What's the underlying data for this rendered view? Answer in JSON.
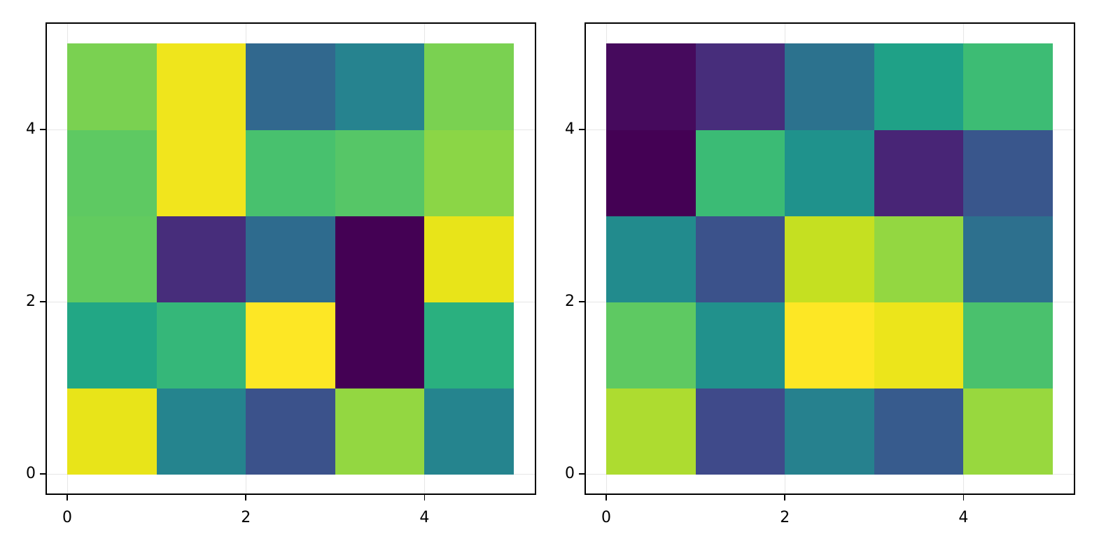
{
  "chart_data": [
    {
      "type": "heatmap",
      "title": "",
      "xlabel": "",
      "ylabel": "",
      "xlim": [
        -0.25,
        5.25
      ],
      "ylim": [
        -0.25,
        5.25
      ],
      "xticks": [
        "0",
        "2",
        "4"
      ],
      "yticks": [
        "0",
        "2",
        "4"
      ],
      "grid": true,
      "colormap": "viridis",
      "cell_edges_x": [
        0,
        1,
        2,
        3,
        4,
        5
      ],
      "cell_edges_y": [
        0,
        1,
        2,
        3,
        4,
        5
      ],
      "rows_bottom_to_top": [
        [
          "#e8e419",
          "#25848e",
          "#3b528b",
          "#93d741",
          "#25848e"
        ],
        [
          "#22a785",
          "#35b779",
          "#fde725",
          "#440154",
          "#2ab07f"
        ],
        [
          "#62cb5f",
          "#472d7b",
          "#2e6b8e",
          "#440154",
          "#e8e419"
        ],
        [
          "#5ec962",
          "#f1e51d",
          "#48c16e",
          "#56c667",
          "#8bd646"
        ],
        [
          "#7ad151",
          "#efe51c",
          "#31688e",
          "#26838f",
          "#7ad151"
        ]
      ],
      "approx_values_bottom_to_top": [
        [
          0.97,
          0.5,
          0.3,
          0.85,
          0.5
        ],
        [
          0.62,
          0.7,
          1.0,
          0.0,
          0.66
        ],
        [
          0.77,
          0.12,
          0.4,
          0.0,
          0.97
        ],
        [
          0.76,
          0.99,
          0.73,
          0.75,
          0.83
        ],
        [
          0.8,
          0.98,
          0.38,
          0.5,
          0.8
        ]
      ]
    },
    {
      "type": "heatmap",
      "title": "",
      "xlabel": "",
      "ylabel": "",
      "xlim": [
        -0.25,
        5.25
      ],
      "ylim": [
        -0.25,
        5.25
      ],
      "xticks": [
        "0",
        "2",
        "4"
      ],
      "yticks": [
        "0",
        "2",
        "4"
      ],
      "grid": true,
      "colormap": "viridis",
      "cell_edges_x": [
        0,
        1,
        2,
        3,
        4,
        5
      ],
      "cell_edges_y": [
        0,
        1,
        2,
        3,
        4,
        5
      ],
      "rows_bottom_to_top": [
        [
          "#addc30",
          "#3f4a8a",
          "#26818e",
          "#375b8d",
          "#98d83e"
        ],
        [
          "#5ec962",
          "#21918c",
          "#fde725",
          "#ece51b",
          "#4ac16d"
        ],
        [
          "#228b8d",
          "#3b528b",
          "#c5e021",
          "#93d741",
          "#2d708e"
        ],
        [
          "#440154",
          "#3bbb75",
          "#1f928c",
          "#482576",
          "#39568c"
        ],
        [
          "#460a5d",
          "#472d7b",
          "#2c728e",
          "#1fa187",
          "#3dbc74"
        ]
      ],
      "approx_values_bottom_to_top": [
        [
          0.88,
          0.22,
          0.48,
          0.33,
          0.86
        ],
        [
          0.76,
          0.55,
          1.0,
          0.98,
          0.72
        ],
        [
          0.52,
          0.3,
          0.92,
          0.85,
          0.42
        ],
        [
          0.0,
          0.72,
          0.56,
          0.1,
          0.32
        ],
        [
          0.03,
          0.12,
          0.43,
          0.6,
          0.72
        ]
      ]
    }
  ],
  "axes": {
    "left": {
      "yticks": [
        "0",
        "2",
        "4"
      ],
      "xticks": [
        "0",
        "2",
        "4"
      ]
    },
    "right": {
      "yticks": [
        "0",
        "2",
        "4"
      ],
      "xticks": [
        "0",
        "2",
        "4"
      ]
    }
  }
}
